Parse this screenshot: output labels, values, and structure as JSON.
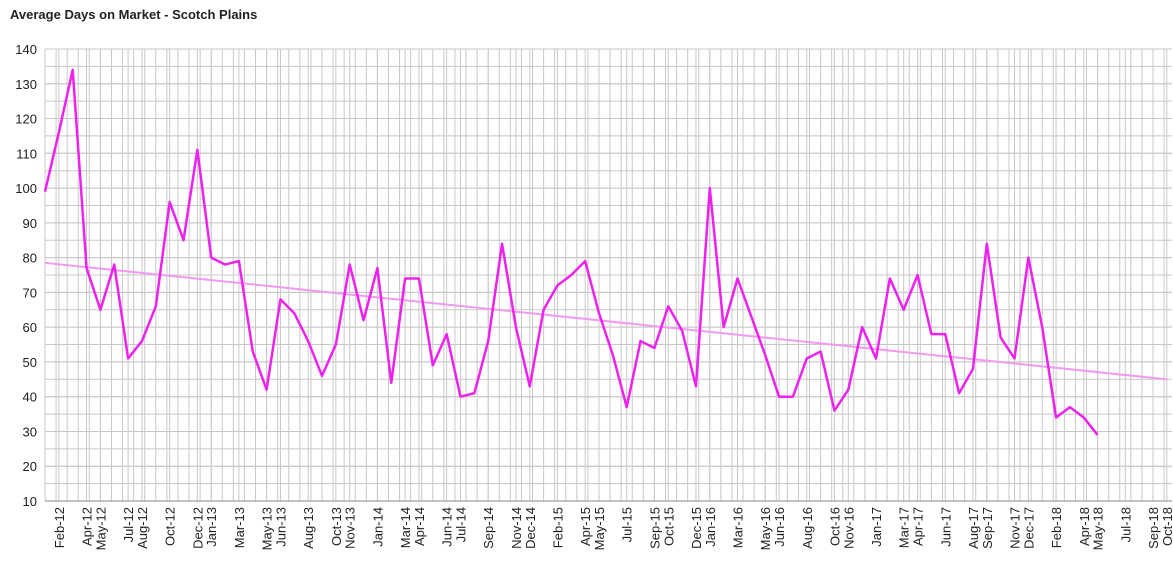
{
  "chart_data": {
    "type": "line",
    "title": "Average Days on Market - Scotch Plains",
    "x": [
      "Jan-12",
      "Feb-12",
      "Mar-12",
      "Apr-12",
      "May-12",
      "Jun-12",
      "Jul-12",
      "Aug-12",
      "Sep-12",
      "Oct-12",
      "Nov-12",
      "Dec-12",
      "Jan-13",
      "Feb-13",
      "Mar-13",
      "Apr-13",
      "May-13",
      "Jun-13",
      "Jul-13",
      "Aug-13",
      "Sep-13",
      "Oct-13",
      "Nov-13",
      "Dec-13",
      "Jan-14",
      "Feb-14",
      "Mar-14",
      "Apr-14",
      "May-14",
      "Jun-14",
      "Jul-14",
      "Aug-14",
      "Sep-14",
      "Oct-14",
      "Nov-14",
      "Dec-14",
      "Jan-15",
      "Feb-15",
      "Mar-15",
      "Apr-15",
      "May-15",
      "Jun-15",
      "Jul-15",
      "Aug-15",
      "Sep-15",
      "Oct-15",
      "Nov-15",
      "Dec-15",
      "Jan-16",
      "Feb-16",
      "Mar-16",
      "Apr-16",
      "May-16",
      "Jun-16",
      "Jul-16",
      "Aug-16",
      "Sep-16",
      "Oct-16",
      "Nov-16",
      "Dec-16",
      "Jan-17",
      "Feb-17",
      "Mar-17",
      "Apr-17",
      "May-17",
      "Jun-17",
      "Jul-17",
      "Aug-17",
      "Sep-17",
      "Oct-17",
      "Nov-17",
      "Dec-17",
      "Jan-18",
      "Feb-18",
      "Mar-18",
      "Apr-18",
      "May-18"
    ],
    "series": [
      {
        "color": "#ee22ee",
        "values": [
          99,
          116,
          134,
          77,
          65,
          78,
          51,
          56,
          66,
          96,
          85,
          111,
          80,
          78,
          79,
          53,
          42,
          68,
          64,
          56,
          46,
          55,
          78,
          62,
          77,
          44,
          74,
          74,
          49,
          58,
          40,
          41,
          56,
          84,
          60,
          43,
          65,
          72,
          75,
          79,
          64,
          52,
          37,
          56,
          54,
          66,
          59,
          43,
          100,
          60,
          74,
          63,
          52,
          40,
          40,
          51,
          53,
          36,
          42,
          60,
          51,
          74,
          65,
          75,
          58,
          58,
          41,
          48,
          84,
          57,
          51,
          80,
          60,
          34,
          37,
          34,
          29
        ]
      }
    ],
    "trend": {
      "color": "#f29af2",
      "x": [
        "Jan-12",
        "Oct-18"
      ],
      "values": [
        78.5,
        45
      ]
    },
    "xticks": [
      "Feb-12",
      "Apr-12",
      "May-12",
      "Jul-12",
      "Aug-12",
      "Oct-12",
      "Dec-12",
      "Jan-13",
      "Mar-13",
      "May-13",
      "Jun-13",
      "Aug-13",
      "Oct-13",
      "Nov-13",
      "Jan-14",
      "Mar-14",
      "Apr-14",
      "Jun-14",
      "Jul-14",
      "Sep-14",
      "Nov-14",
      "Dec-14",
      "Feb-15",
      "Apr-15",
      "May-15",
      "Jul-15",
      "Sep-15",
      "Oct-15",
      "Dec-15",
      "Jan-16",
      "Mar-16",
      "May-16",
      "Jun-16",
      "Aug-16",
      "Oct-16",
      "Nov-16",
      "Jan-17",
      "Mar-17",
      "Apr-17",
      "Jun-17",
      "Aug-17",
      "Sep-17",
      "Nov-17",
      "Dec-17",
      "Feb-18",
      "Apr-18",
      "May-18",
      "Jul-18",
      "Sep-18",
      "Oct-18"
    ],
    "ylim": [
      10,
      140
    ],
    "yticks": [
      10,
      20,
      30,
      40,
      50,
      60,
      70,
      80,
      90,
      100,
      110,
      120,
      130,
      140
    ],
    "grid": true
  }
}
